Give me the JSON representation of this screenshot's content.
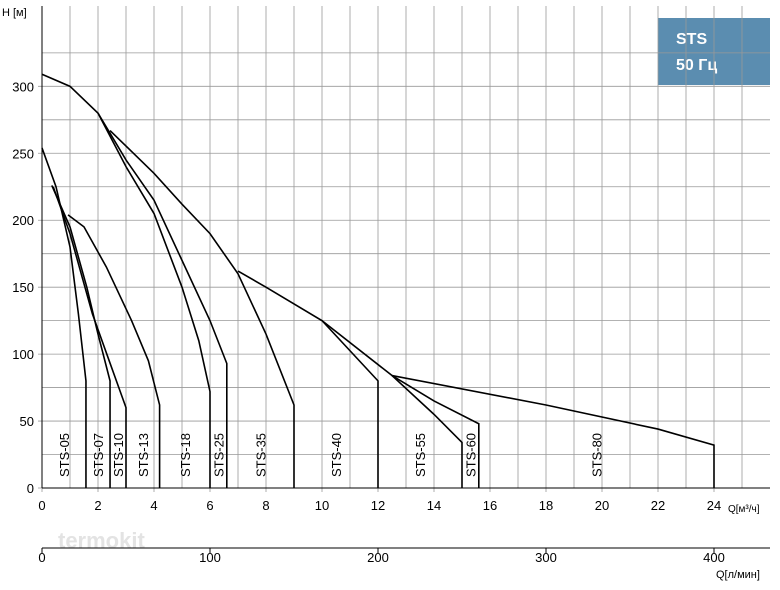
{
  "chart_data": {
    "type": "line",
    "title": "STS",
    "subtitle": "50 Гц",
    "ylabel": "H [м]",
    "xlabel": "Q[м³/ч]",
    "x2label": "Q[л/мин]",
    "watermark": "termokit",
    "color": "#000000",
    "xlim": [
      0,
      26
    ],
    "xticks": [
      0,
      2,
      4,
      6,
      8,
      10,
      12,
      14,
      16,
      18,
      20,
      22,
      24
    ],
    "xgrid": [
      1,
      3,
      5,
      7,
      9,
      11,
      13,
      15,
      17,
      19,
      21,
      23,
      25
    ],
    "ylim": [
      0,
      360
    ],
    "yticks": [
      0,
      50,
      100,
      150,
      200,
      250,
      300
    ],
    "ygrid": [
      25,
      75,
      125,
      175,
      225,
      275,
      325
    ],
    "x2lim": [
      0,
      433.33
    ],
    "x2ticks": [
      0,
      100,
      200,
      300,
      400
    ],
    "series": [
      {
        "name": "STS-05",
        "x": [
          0,
          0.5,
          1.0,
          1.3,
          1.57,
          1.57
        ],
        "values": [
          254,
          225,
          180,
          130,
          80,
          0
        ]
      },
      {
        "name": "STS-07",
        "x": [
          0.35,
          1,
          1.6,
          2.0,
          2.43,
          2.43
        ],
        "values": [
          226,
          195,
          150,
          115,
          80,
          0
        ]
      },
      {
        "name": "STS-10",
        "x": [
          0.4,
          1,
          1.8,
          2.4,
          3.0,
          3.0
        ],
        "values": [
          225,
          190,
          130,
          95,
          60,
          0
        ]
      },
      {
        "name": "STS-13",
        "x": [
          0.93,
          1.5,
          2.3,
          3.2,
          3.8,
          4.2,
          4.2
        ],
        "values": [
          204,
          195,
          165,
          125,
          95,
          62,
          0
        ]
      },
      {
        "name": "STS-18",
        "x": [
          2.0,
          3,
          4,
          5,
          5.6,
          6.0,
          6.0
        ],
        "values": [
          280,
          240,
          205,
          150,
          110,
          72,
          0
        ]
      },
      {
        "name": "STS-25",
        "x": [
          0,
          1,
          2,
          3,
          4,
          5,
          6,
          6.6,
          6.6
        ],
        "values": [
          309,
          300,
          280,
          245,
          215,
          170,
          125,
          93,
          0
        ]
      },
      {
        "name": "STS-35",
        "x": [
          2.43,
          4,
          5,
          6,
          7,
          8,
          9,
          9
        ],
        "values": [
          267,
          235,
          212,
          190,
          160,
          115,
          62,
          0
        ]
      },
      {
        "name": "STS-40",
        "x": [
          7,
          8,
          10,
          12,
          12
        ],
        "values": [
          162,
          150,
          125,
          80,
          0
        ]
      },
      {
        "name": "STS-55",
        "x": [
          10,
          12.5,
          14,
          15,
          15
        ],
        "values": [
          125,
          84,
          55,
          34,
          0
        ]
      },
      {
        "name": "STS-60",
        "x": [
          12.5,
          14,
          15.6,
          15.6
        ],
        "values": [
          84,
          65,
          48,
          0
        ]
      },
      {
        "name": "STS-80",
        "x": [
          12.5,
          18,
          22,
          24,
          24
        ],
        "values": [
          84,
          62,
          44,
          32,
          0
        ]
      }
    ]
  }
}
